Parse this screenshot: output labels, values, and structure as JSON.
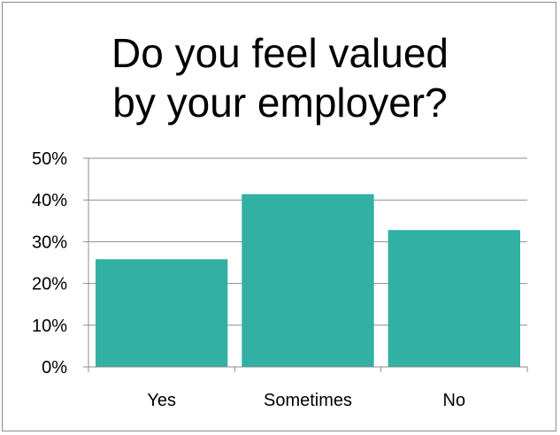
{
  "chart_data": {
    "type": "bar",
    "title_lines": [
      "Do you feel valued",
      "by your employer?"
    ],
    "categories": [
      "Yes",
      "Sometimes",
      "No"
    ],
    "values": [
      25.8,
      41.4,
      32.8
    ],
    "unit": "%",
    "ylim": [
      0,
      50
    ],
    "yticks": [
      "0%",
      "10%",
      "20%",
      "30%",
      "40%",
      "50%"
    ],
    "grid": true,
    "legend": "none",
    "bar_color": "#31b0a3",
    "grid_color": "#8c8c8c",
    "xlabel": "",
    "ylabel": ""
  }
}
